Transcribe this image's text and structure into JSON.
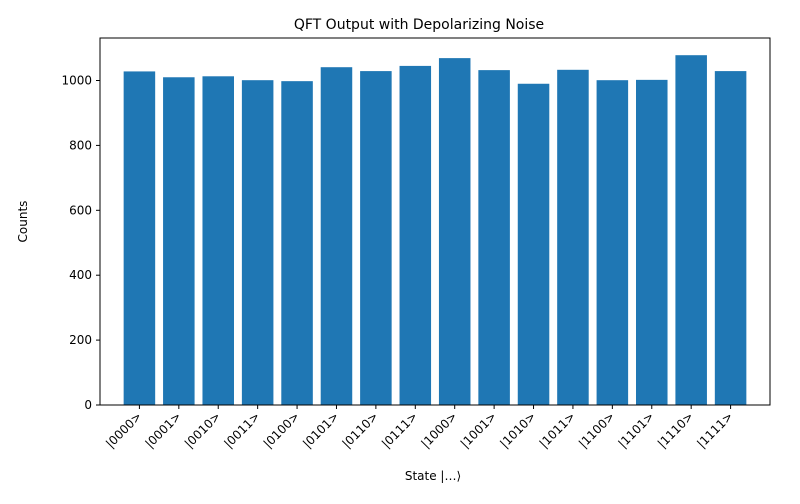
{
  "chart_data": {
    "type": "bar",
    "title": "QFT Output with Depolarizing Noise",
    "xlabel": "State |…⟩",
    "ylabel": "Counts",
    "categories": [
      "|0000>",
      "|0001>",
      "|0010>",
      "|0011>",
      "|0100>",
      "|0101>",
      "|0110>",
      "|0111>",
      "|1000>",
      "|1001>",
      "|1010>",
      "|1011>",
      "|1100>",
      "|1101>",
      "|1110>",
      "|1111>"
    ],
    "values": [
      1028,
      1010,
      1013,
      1001,
      998,
      1041,
      1029,
      1045,
      1069,
      1032,
      990,
      1033,
      1001,
      1002,
      1078,
      1029
    ],
    "ylim": [
      0,
      1131
    ],
    "yticks": [
      0,
      200,
      400,
      600,
      800,
      1000
    ],
    "bar_color": "#1f77b4",
    "grid": false,
    "xtick_rotation": 45
  }
}
